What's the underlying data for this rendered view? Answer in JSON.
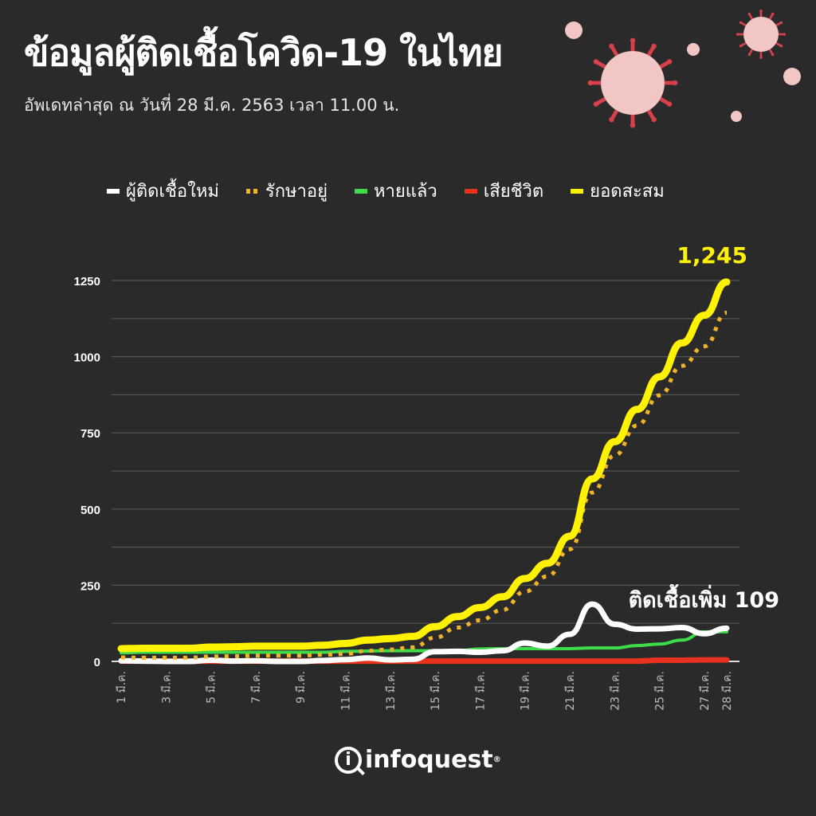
{
  "header": {
    "title": "ข้อมูลผู้ติดเชื้อโควิด-19 ในไทย",
    "subtitle": "อัพเดทล่าสุด ณ วันที่ 28 มี.ค. 2563 เวลา 11.00 น."
  },
  "logo": {
    "text": "infoquest",
    "mark": "®"
  },
  "chart_data": {
    "type": "line",
    "title": "",
    "xlabel": "",
    "ylabel": "",
    "ylim": [
      0,
      1250
    ],
    "yticks": [
      0,
      250,
      500,
      750,
      1000,
      1250
    ],
    "grid": true,
    "legend_position": "top",
    "x": [
      "1 มี.ค.",
      "2 มี.ค.",
      "3 มี.ค.",
      "4 มี.ค.",
      "5 มี.ค.",
      "6 มี.ค.",
      "7 มี.ค.",
      "8 มี.ค.",
      "9 มี.ค.",
      "10 มี.ค.",
      "11 มี.ค.",
      "12 มี.ค.",
      "13 มี.ค.",
      "14 มี.ค.",
      "15 มี.ค.",
      "16 มี.ค.",
      "17 มี.ค.",
      "18 มี.ค.",
      "19 มี.ค.",
      "20 มี.ค.",
      "21 มี.ค.",
      "22 มี.ค.",
      "23 มี.ค.",
      "24 มี.ค.",
      "25 มี.ค.",
      "26 มี.ค.",
      "27 มี.ค.",
      "28 มี.ค."
    ],
    "xtick_labels": [
      "1 มี.ค.",
      "3 มี.ค.",
      "5 มี.ค.",
      "7 มี.ค.",
      "9 มี.ค.",
      "11 มี.ค.",
      "13 มี.ค.",
      "15 มี.ค.",
      "17 มี.ค.",
      "19 มี.ค.",
      "21 มี.ค.",
      "23 มี.ค.",
      "25 มี.ค.",
      "27 มี.ค.",
      "28 มี.ค."
    ],
    "series": [
      {
        "name": "ผู้ติดเชื้อใหม่",
        "color": "#ffffff",
        "style": "solid",
        "values": [
          2,
          1,
          0,
          0,
          4,
          1,
          2,
          0,
          0,
          3,
          6,
          11,
          5,
          7,
          32,
          33,
          30,
          35,
          60,
          50,
          89,
          188,
          122,
          106,
          107,
          111,
          91,
          109
        ]
      },
      {
        "name": "รักษาอยู่",
        "color": "#f0b429",
        "style": "dotted",
        "values": [
          13,
          12,
          12,
          12,
          16,
          17,
          19,
          19,
          19,
          22,
          25,
          35,
          39,
          46,
          78,
          111,
          135,
          169,
          229,
          279,
          368,
          554,
          676,
          774,
          873,
          970,
          1034,
          1144
        ]
      },
      {
        "name": "หายแล้ว",
        "color": "#3ddc4a",
        "style": "solid",
        "values": [
          28,
          30,
          30,
          30,
          30,
          30,
          30,
          30,
          30,
          30,
          33,
          34,
          35,
          35,
          35,
          35,
          41,
          42,
          42,
          42,
          42,
          44,
          44,
          52,
          57,
          70,
          97,
          97
        ]
      },
      {
        "name": "เสียชีวิต",
        "color": "#e8321f",
        "style": "solid",
        "values": [
          1,
          1,
          1,
          1,
          1,
          1,
          1,
          1,
          1,
          1,
          1,
          1,
          1,
          1,
          1,
          1,
          1,
          1,
          1,
          1,
          1,
          1,
          1,
          1,
          4,
          4,
          5,
          5
        ]
      },
      {
        "name": "ยอดสะสม",
        "color": "#fff200",
        "style": "solid",
        "values": [
          42,
          43,
          43,
          43,
          47,
          48,
          50,
          50,
          50,
          53,
          59,
          70,
          75,
          82,
          114,
          147,
          177,
          212,
          272,
          322,
          411,
          599,
          721,
          827,
          934,
          1045,
          1136,
          1245
        ]
      }
    ],
    "annotations": {
      "total": "1,245",
      "new": "ติดเชื้อเพิ่ม 109"
    }
  }
}
